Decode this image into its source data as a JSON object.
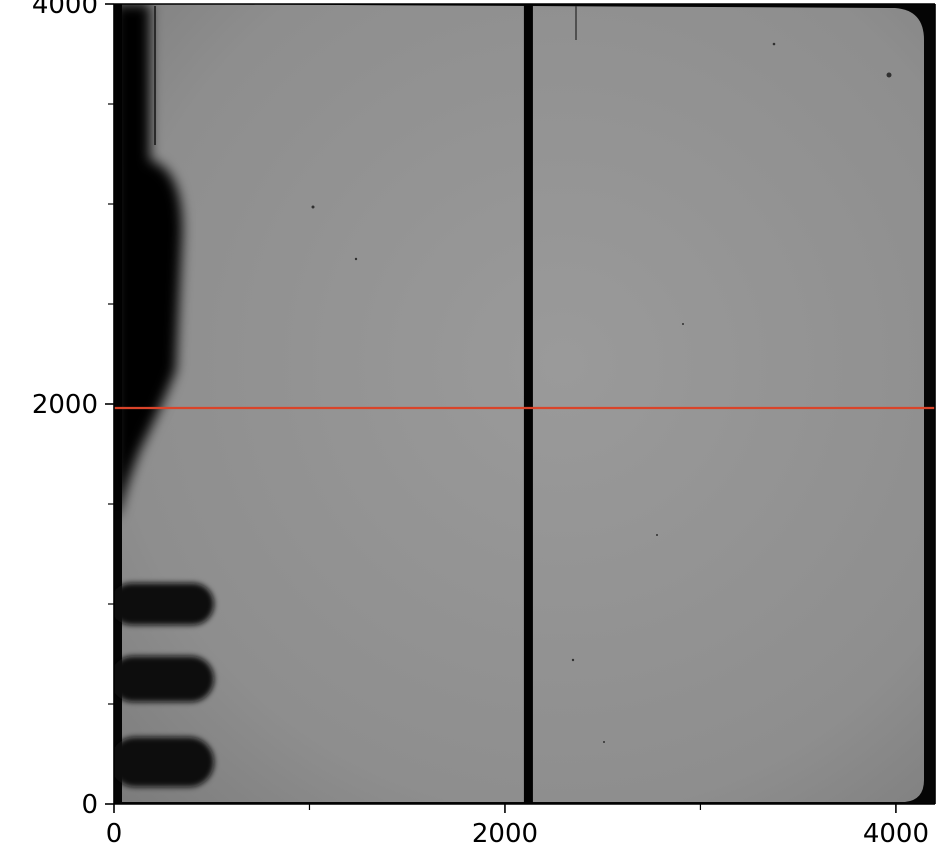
{
  "chart_data": {
    "type": "heatmap",
    "title": "",
    "xlabel": "",
    "ylabel": "",
    "xlim": [
      0,
      4200
    ],
    "ylim": [
      0,
      4000
    ],
    "x_ticks": [
      {
        "value": 0,
        "label": "0"
      },
      {
        "value": 2000,
        "label": "2000"
      },
      {
        "value": 4000,
        "label": "4000"
      }
    ],
    "y_ticks": [
      {
        "value": 0,
        "label": "0"
      },
      {
        "value": 2000,
        "label": "2000"
      },
      {
        "value": 4000,
        "label": "4000"
      }
    ],
    "x_minor_ticks": [
      1000,
      3000
    ],
    "y_minor_ticks": [
      500,
      1000,
      1500,
      2500,
      3000,
      3500
    ],
    "grid": false,
    "colormap": "gray",
    "image_description_values": {
      "vertical_dark_stripe_x": 2120,
      "horizontal_marker_line_y": 1980
    },
    "marker_line": {
      "orientation": "horizontal",
      "y": 1980,
      "color": "#d9442a"
    },
    "colors": {
      "background_gray": "#8c8c8c",
      "dark_region": "#050505",
      "marker_line": "#d9442a",
      "axes": "#000000"
    }
  }
}
